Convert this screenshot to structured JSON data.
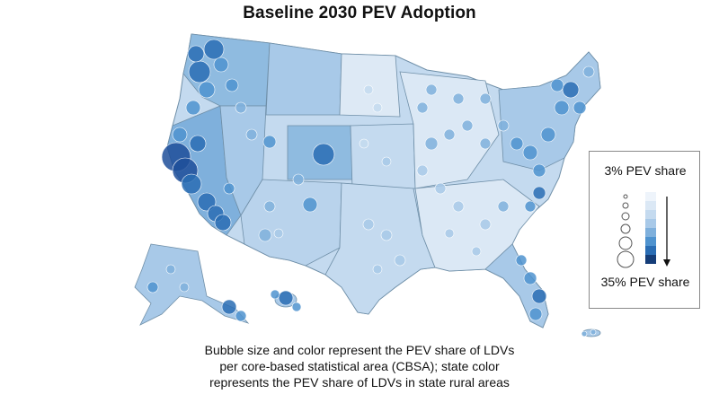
{
  "title": "Baseline 2030 PEV Adoption",
  "caption": {
    "line1": "Bubble size and color represent the PEV share of LDVs",
    "line2": "per core-based statistical area (CBSA); state color",
    "line3": "represents the PEV share of LDVs in state rural areas"
  },
  "legend": {
    "min_label": "3% PEV share",
    "max_label": "35% PEV share",
    "scale_colors": [
      "#eef4fb",
      "#dbe8f5",
      "#c4daef",
      "#a8c9e8",
      "#7fb0dc",
      "#4f93cf",
      "#2a6db4",
      "#153d78"
    ]
  },
  "colors": {
    "state_fill_light": "#dde9f5",
    "state_fill_mid": "#b9d3ec",
    "state_fill_dark": "#8fbbe0",
    "state_border": "#6f8fa8",
    "bubble_light": "#c4daef",
    "bubble_dark": "#1f4f9a"
  },
  "map_regions": [
    "United States",
    "Alaska",
    "Hawaii",
    "Puerto Rico"
  ]
}
